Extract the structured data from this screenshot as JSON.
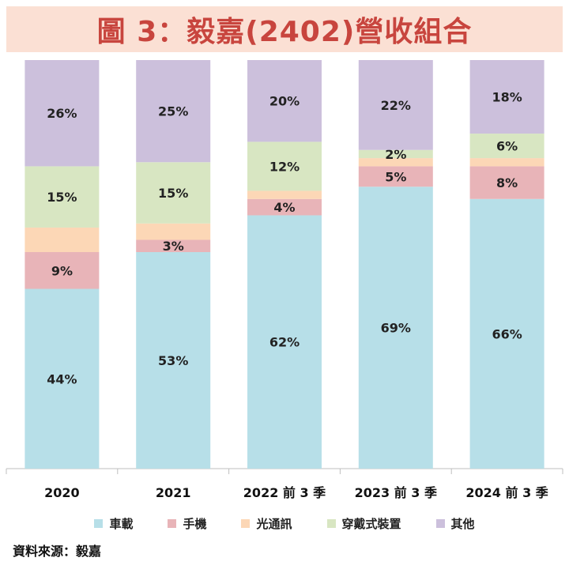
{
  "title": "圖 3：毅嘉(2402)營收組合",
  "source": "資料來源：毅嘉",
  "colors": {
    "title_bg": "#fbe0d4",
    "title_text": "#c8453e",
    "車載": "#b7dfe8",
    "手機": "#e8b4b8",
    "光通訊": "#fcd7b6",
    "穿戴式裝置": "#d8e6c2",
    "其他": "#ccc0dc"
  },
  "chart_data": {
    "type": "bar",
    "stacked": true,
    "normalized": true,
    "title": "圖 3：毅嘉(2402)營收組合",
    "categories": [
      "2020",
      "2021",
      "2022 前 3 季",
      "2023 前 3 季",
      "2024 前 3 季"
    ],
    "ylim": [
      0,
      100
    ],
    "series": [
      {
        "name": "車載",
        "values": [
          44,
          53,
          62,
          69,
          66
        ],
        "labels": [
          "44%",
          "53%",
          "62%",
          "69%",
          "66%"
        ]
      },
      {
        "name": "手機",
        "values": [
          9,
          3,
          4,
          5,
          8
        ],
        "labels": [
          "9%",
          "3%",
          "4%",
          "5%",
          "8%"
        ]
      },
      {
        "name": "光通訊",
        "values": [
          6,
          4,
          2,
          2,
          2
        ],
        "labels": [
          "",
          "",
          "",
          "",
          ""
        ]
      },
      {
        "name": "穿戴式裝置",
        "values": [
          15,
          15,
          12,
          2,
          6
        ],
        "labels": [
          "15%",
          "15%",
          "12%",
          "2%",
          "6%"
        ]
      },
      {
        "name": "其他",
        "values": [
          26,
          25,
          20,
          22,
          18
        ],
        "labels": [
          "26%",
          "25%",
          "20%",
          "22%",
          "18%"
        ]
      }
    ],
    "legend": [
      "車載",
      "手機",
      "光通訊",
      "穿戴式裝置",
      "其他"
    ],
    "legend_position": "bottom"
  }
}
